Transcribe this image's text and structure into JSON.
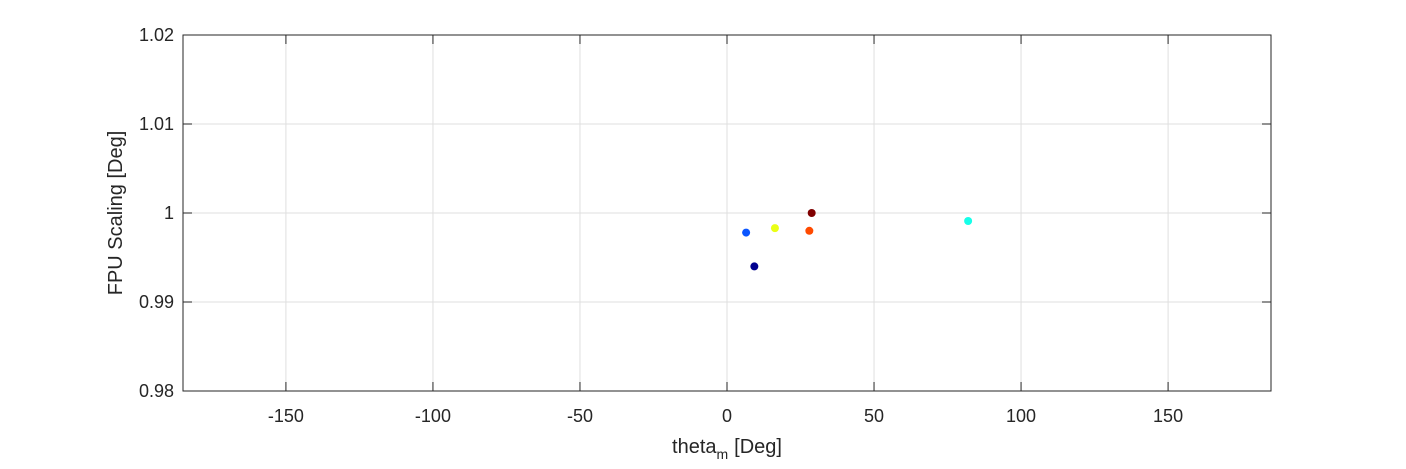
{
  "chart_data": {
    "type": "scatter",
    "xlabel": "theta",
    "xlabel_subscript": "m",
    "xlabel_unit": "[Deg]",
    "ylabel": "FPU Scaling [Deg]",
    "xlim": [
      -185,
      185
    ],
    "ylim": [
      0.98,
      1.02
    ],
    "xticks": [
      -150,
      -100,
      -50,
      0,
      50,
      100,
      150
    ],
    "yticks": [
      0.98,
      0.99,
      1,
      1.01,
      1.02
    ],
    "xtick_labels": [
      "-150",
      "-100",
      "-50",
      "0",
      "50",
      "100",
      "150"
    ],
    "ytick_labels": [
      "0.98",
      "0.99",
      "1",
      "1.01",
      "1.02"
    ],
    "grid": true,
    "points": [
      {
        "x": 6.5,
        "y": 0.9978,
        "color": "#0a55ff"
      },
      {
        "x": 9.3,
        "y": 0.994,
        "color": "#00008f"
      },
      {
        "x": 16.3,
        "y": 0.9983,
        "color": "#eaff15"
      },
      {
        "x": 28.0,
        "y": 0.998,
        "color": "#ff4a00"
      },
      {
        "x": 28.8,
        "y": 1.0,
        "color": "#800000"
      },
      {
        "x": 82.0,
        "y": 0.9991,
        "color": "#16ffe9"
      }
    ],
    "colors": {
      "axis": "#262626",
      "grid": "#dfdfdf"
    }
  }
}
